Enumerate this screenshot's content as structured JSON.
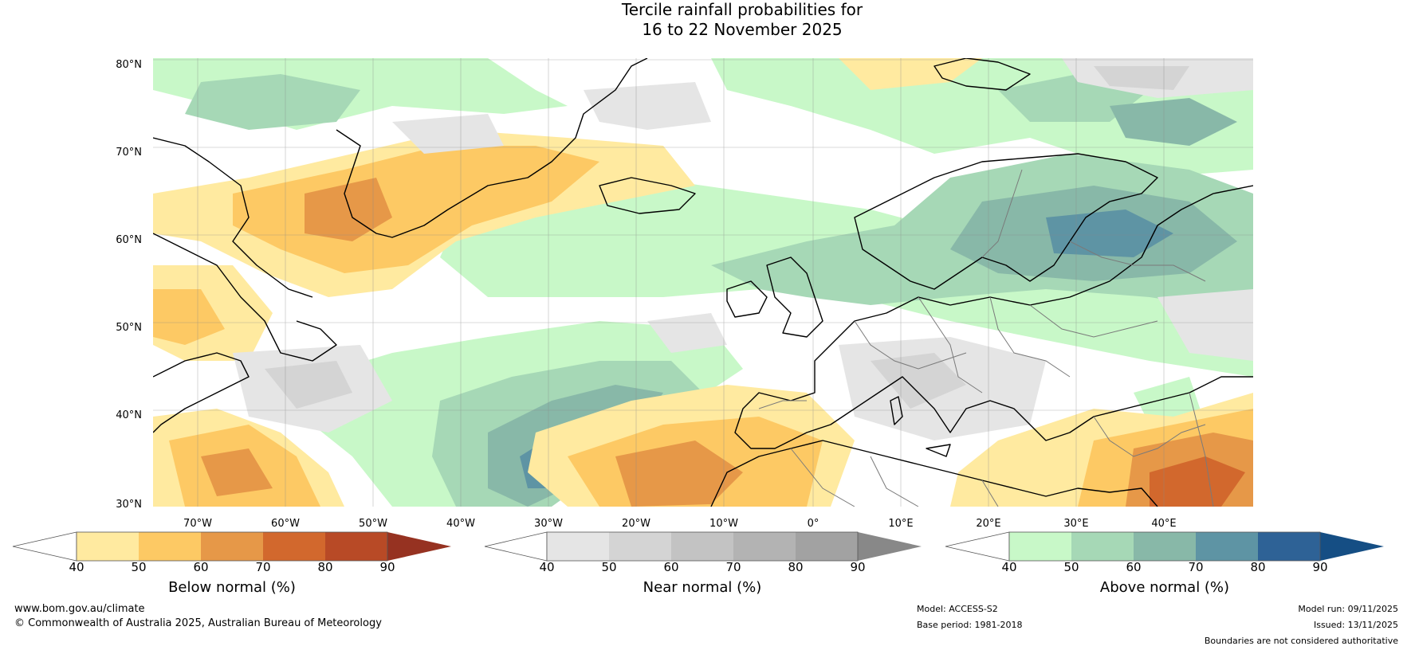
{
  "title": {
    "line1": "Tercile rainfall probabilities for",
    "line2": "16 to 22 November 2025"
  },
  "map": {
    "lat_labels": [
      "80°N",
      "70°N",
      "60°N",
      "50°N",
      "40°N",
      "30°N"
    ],
    "lon_labels": [
      "70°W",
      "60°W",
      "50°W",
      "40°W",
      "30°W",
      "20°W",
      "10°W",
      "0°",
      "10°E",
      "20°E",
      "30°E",
      "40°E"
    ]
  },
  "legend": {
    "below": {
      "label": "Below normal (%)",
      "ticks": [
        "40",
        "50",
        "60",
        "70",
        "80",
        "90"
      ],
      "colors": [
        "#ffeaa0",
        "#fdc964",
        "#e69848",
        "#d2682d",
        "#b84a26",
        "#963221"
      ]
    },
    "near": {
      "label": "Near normal (%)",
      "ticks": [
        "40",
        "50",
        "60",
        "70",
        "80",
        "90"
      ],
      "colors": [
        "#e5e5e5",
        "#d4d4d4",
        "#c3c3c3",
        "#b3b3b3",
        "#a2a2a2",
        "#888888"
      ]
    },
    "above": {
      "label": "Above normal (%)",
      "ticks": [
        "40",
        "50",
        "60",
        "70",
        "80",
        "90"
      ],
      "colors": [
        "#c8f8c8",
        "#a6d8b6",
        "#88b8a8",
        "#5e94a4",
        "#2e6296",
        "#154e84"
      ]
    }
  },
  "footer": {
    "website": "www.bom.gov.au/climate",
    "copyright": "© Commonwealth of Australia 2025, Australian Bureau of Meteorology",
    "model": "Model: ACCESS-S2",
    "base_period": "Base period: 1981-2018",
    "model_run": "Model run: 09/11/2025",
    "issued": "Issued: 13/11/2025",
    "disclaimer": "Boundaries are not considered authoritative"
  }
}
